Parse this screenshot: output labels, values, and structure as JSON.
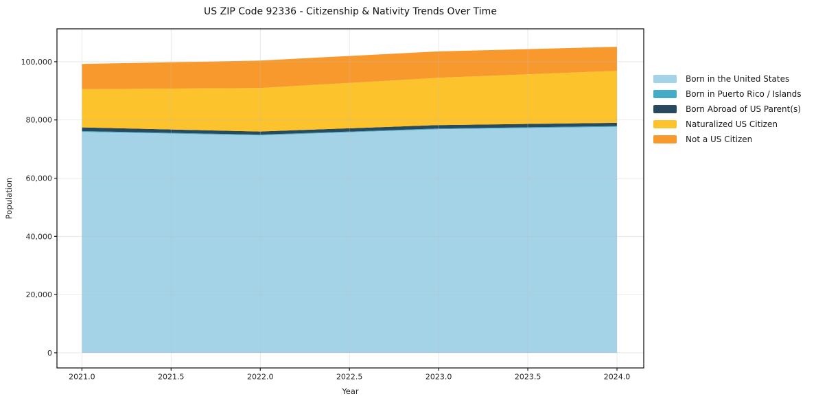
{
  "chart_data": {
    "type": "area",
    "stacked": true,
    "title": "US ZIP Code 92336 - Citizenship & Nativity Trends Over Time",
    "xlabel": "Year",
    "ylabel": "Population",
    "x": [
      2021,
      2022,
      2023,
      2024
    ],
    "series": [
      {
        "name": "Born in the United States",
        "color": "#A4D3E8",
        "values": [
          75900,
          74700,
          76800,
          77650
        ]
      },
      {
        "name": "Born in Puerto Rico / Islands",
        "color": "#46ABC6",
        "values": [
          250,
          250,
          250,
          250
        ]
      },
      {
        "name": "Born Abroad of US Parent(s)",
        "color": "#284A5E",
        "values": [
          1280,
          1060,
          1180,
          1110
        ]
      },
      {
        "name": "Naturalized US Citizen",
        "color": "#FCC32D",
        "values": [
          13150,
          14950,
          16250,
          17850
        ]
      },
      {
        "name": "Not a US Citizen",
        "color": "#F8992D",
        "values": [
          8650,
          9450,
          9050,
          8250
        ]
      }
    ],
    "totals": [
      99230,
      100410,
      103530,
      105110
    ],
    "x_ticks": [
      2021.0,
      2021.5,
      2022.0,
      2022.5,
      2023.0,
      2023.5,
      2024.0
    ],
    "x_tick_labels": [
      "2021.0",
      "2021.5",
      "2022.0",
      "2022.5",
      "2023.0",
      "2023.5",
      "2024.0"
    ],
    "y_ticks": [
      0,
      20000,
      40000,
      60000,
      80000,
      100000
    ],
    "y_tick_labels": [
      "0",
      "20,000",
      "40,000",
      "60,000",
      "80,000",
      "100,000"
    ],
    "xlim": [
      2020.86,
      2024.15
    ],
    "ylim": [
      -5200,
      111300
    ],
    "grid": true,
    "legend_position": "right",
    "style": {
      "grid_color": "#bebebe",
      "axis_color": "#1a1a1a",
      "text_color": "#262626",
      "background": "#ffffff"
    }
  }
}
